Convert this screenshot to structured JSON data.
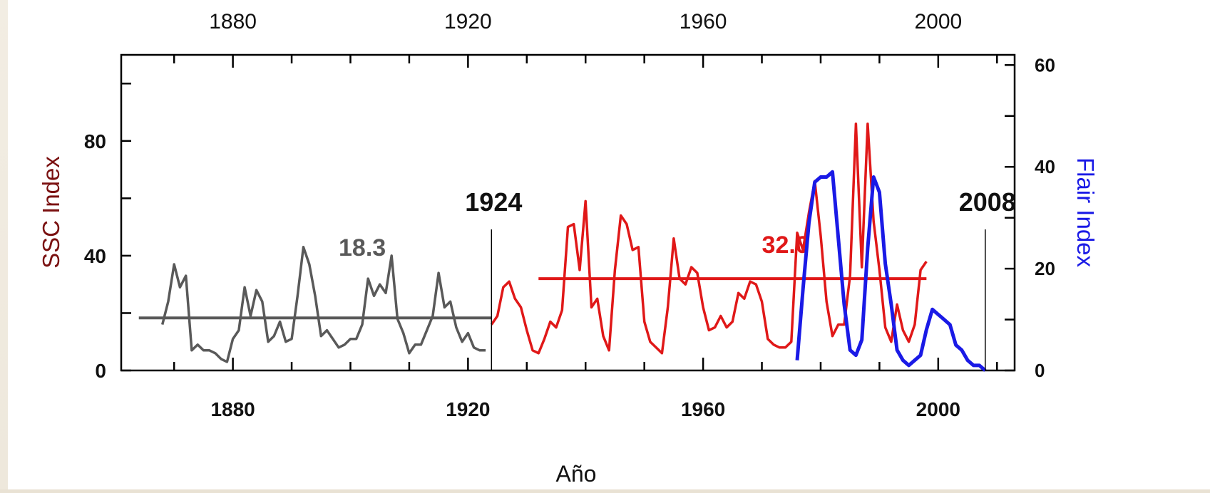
{
  "chart_data": {
    "type": "line",
    "xlabel": "Año",
    "ylabel_left": "SSC Index",
    "ylabel_right": "Flair Index",
    "xlim": [
      1861,
      2013
    ],
    "ylim_left": [
      0,
      110
    ],
    "ylim_right": [
      0,
      62
    ],
    "x_ticks_labeled": [
      1880,
      1920,
      1960,
      2000
    ],
    "x_ticks_minor_step": 10,
    "y_left_ticks_labeled": [
      0,
      40,
      80
    ],
    "y_left_ticks_minor_step": 20,
    "y_right_ticks_labeled": [
      0,
      20,
      40,
      60
    ],
    "y_right_ticks_minor_step": 10,
    "colors": {
      "gray": "#595959",
      "red": "#e01818",
      "blue": "#1a1ae6",
      "ylabel_left": "#7a1010",
      "ylabel_right": "#1a1ae6"
    },
    "series": [
      {
        "color": "gray",
        "axis": "left",
        "x": [
          1868,
          1869,
          1870,
          1871,
          1872,
          1873,
          1874,
          1875,
          1876,
          1877,
          1878,
          1879,
          1880,
          1881,
          1882,
          1883,
          1884,
          1885,
          1886,
          1887,
          1888,
          1889,
          1890,
          1891,
          1892,
          1893,
          1894,
          1895,
          1896,
          1897,
          1898,
          1899,
          1900,
          1901,
          1902,
          1903,
          1904,
          1905,
          1906,
          1907,
          1908,
          1909,
          1910,
          1911,
          1912,
          1913,
          1914,
          1915,
          1916,
          1917,
          1918,
          1919,
          1920,
          1921,
          1922,
          1923
        ],
        "y": [
          16,
          24,
          37,
          29,
          33,
          7,
          9,
          7,
          7,
          6,
          4,
          3,
          11,
          14,
          29,
          19,
          28,
          24,
          10,
          12,
          17,
          10,
          11,
          26,
          43,
          37,
          26,
          12,
          14,
          11,
          8,
          9,
          11,
          11,
          16,
          32,
          26,
          30,
          27,
          40,
          18,
          13,
          6,
          9,
          9,
          14,
          19,
          34,
          22,
          24,
          15,
          10,
          13,
          8,
          7,
          7
        ]
      },
      {
        "color": "red",
        "axis": "left",
        "x": [
          1924,
          1925,
          1926,
          1927,
          1928,
          1929,
          1930,
          1931,
          1932,
          1933,
          1934,
          1935,
          1936,
          1937,
          1938,
          1939,
          1940,
          1941,
          1942,
          1943,
          1944,
          1945,
          1946,
          1947,
          1948,
          1949,
          1950,
          1951,
          1952,
          1953,
          1954,
          1955,
          1956,
          1957,
          1958,
          1959,
          1960,
          1961,
          1962,
          1963,
          1964,
          1965,
          1966,
          1967,
          1968,
          1969,
          1970,
          1971,
          1972,
          1973,
          1974,
          1975,
          1976,
          1977,
          1978,
          1979,
          1980,
          1981,
          1982,
          1983,
          1984,
          1985,
          1986,
          1987,
          1988,
          1989,
          1990,
          1991,
          1992,
          1993,
          1994,
          1995,
          1996,
          1997,
          1998
        ],
        "y": [
          16,
          19,
          29,
          31,
          25,
          22,
          14,
          7,
          6,
          11,
          17,
          15,
          21,
          50,
          51,
          35,
          59,
          22,
          25,
          12,
          7,
          35,
          54,
          51,
          42,
          43,
          17,
          10,
          8,
          6,
          22,
          46,
          32,
          30,
          36,
          34,
          22,
          14,
          15,
          19,
          15,
          17,
          27,
          25,
          31,
          30,
          24,
          11,
          9,
          8,
          8,
          10,
          48,
          42,
          55,
          66,
          47,
          24,
          12,
          16,
          16,
          33,
          86,
          36,
          86,
          52,
          35,
          15,
          10,
          23,
          14,
          10,
          16,
          35,
          38
        ]
      },
      {
        "color": "blue",
        "axis": "right",
        "x": [
          1976,
          1977,
          1978,
          1979,
          1980,
          1981,
          1982,
          1983,
          1984,
          1985,
          1986,
          1987,
          1988,
          1989,
          1990,
          1991,
          1992,
          1993,
          1994,
          1995,
          1996,
          1997,
          1998,
          1999,
          2000,
          2001,
          2002,
          2003,
          2004,
          2005,
          2006,
          2007,
          2008
        ],
        "y": [
          2,
          16,
          29,
          37,
          38,
          38,
          39,
          26,
          13,
          4,
          3,
          6,
          24,
          38,
          35,
          21,
          13,
          4,
          2,
          1,
          2,
          3,
          8,
          12,
          11,
          10,
          9,
          5,
          4,
          2,
          1,
          1,
          0
        ]
      }
    ],
    "reference_lines": [
      {
        "color": "gray",
        "value": 18.3,
        "x_from": 1864,
        "x_to": 1924,
        "label": "18.3",
        "label_x": 1898,
        "label_y": 40
      },
      {
        "color": "red",
        "value": 32.0,
        "x_from": 1932,
        "x_to": 1998,
        "label": "32.0",
        "label_x": 1970,
        "label_y": 41
      }
    ],
    "markers": [
      {
        "x": 1924,
        "label": "1924"
      },
      {
        "x": 2008,
        "label": "2008"
      }
    ]
  }
}
